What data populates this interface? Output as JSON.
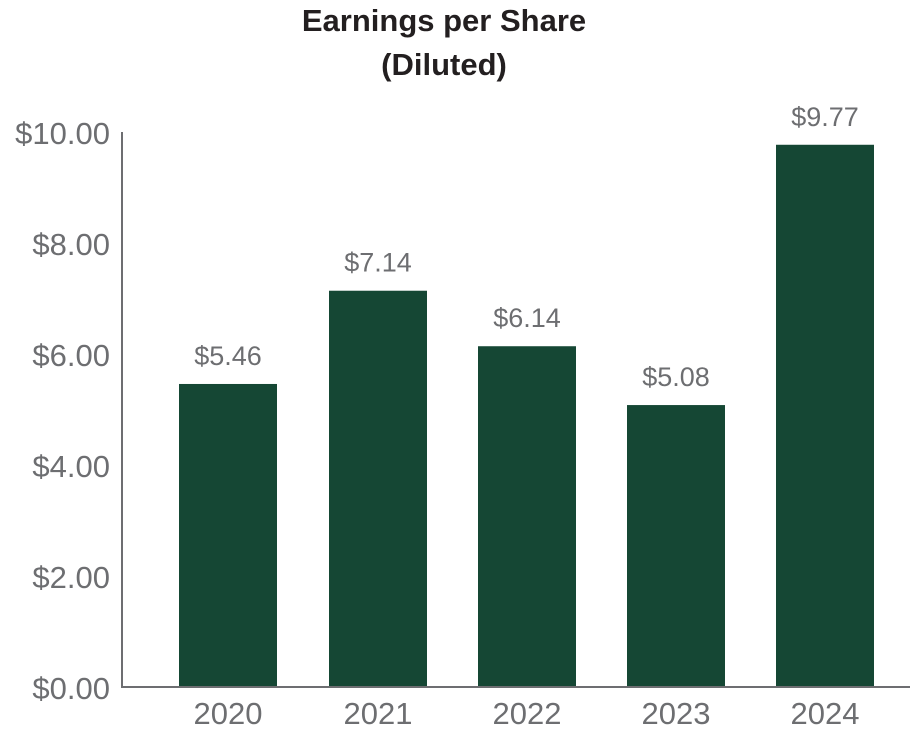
{
  "chart_data": {
    "type": "bar",
    "title_lines": [
      "Earnings per Share",
      "(Diluted)"
    ],
    "xlabel": "",
    "ylabel": "",
    "categories": [
      "2020",
      "2021",
      "2022",
      "2023",
      "2024"
    ],
    "values": [
      5.46,
      7.14,
      6.14,
      5.08,
      9.77
    ],
    "data_labels": [
      "$5.46",
      "$7.14",
      "$6.14",
      "$5.08",
      "$9.77"
    ],
    "y_ticks": [
      0,
      2,
      4,
      6,
      8,
      10
    ],
    "y_tick_labels": [
      "$0.00",
      "$2.00",
      "$4.00",
      "$6.00",
      "$8.00",
      "$10.00"
    ],
    "ylim": [
      0,
      10
    ],
    "grid": false,
    "legend": "none",
    "bar_color": "#154734"
  }
}
